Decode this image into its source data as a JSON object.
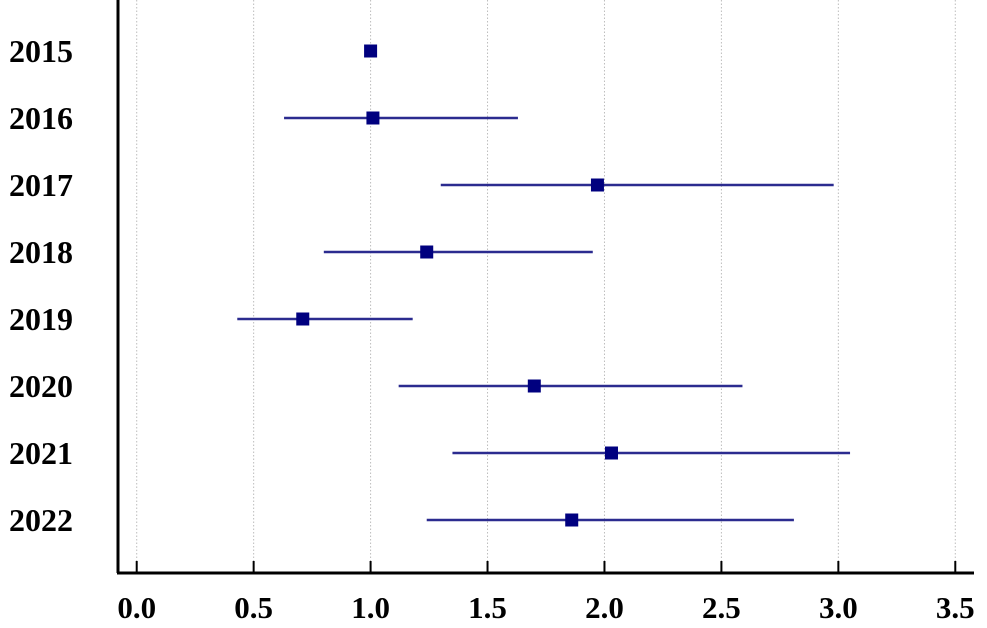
{
  "chart_data": {
    "type": "scatter",
    "subtype": "forest-plot",
    "title": "",
    "xlabel": "",
    "ylabel": "",
    "categories": [
      "2015",
      "2016",
      "2017",
      "2018",
      "2019",
      "2020",
      "2021",
      "2022"
    ],
    "estimates": [
      1.0,
      1.01,
      1.97,
      1.24,
      0.71,
      1.7,
      2.03,
      1.86
    ],
    "ci_lower": [
      null,
      0.63,
      1.3,
      0.8,
      0.43,
      1.12,
      1.35,
      1.24
    ],
    "ci_upper": [
      null,
      1.63,
      2.98,
      1.95,
      1.18,
      2.59,
      3.05,
      2.81
    ],
    "xlim": [
      -0.08,
      3.58
    ],
    "xticks": [
      0.0,
      0.5,
      1.0,
      1.5,
      2.0,
      2.5,
      3.0,
      3.5
    ],
    "xtick_labels": [
      "0.0",
      "0.5",
      "1.0",
      "1.5",
      "2.0",
      "2.5",
      "3.0",
      "3.5"
    ],
    "grid": "vertical-dotted",
    "colors": {
      "marker": "#00007f",
      "whisker": "#2b2b8f",
      "grid": "#bdbdbd",
      "axis": "#000000"
    }
  }
}
